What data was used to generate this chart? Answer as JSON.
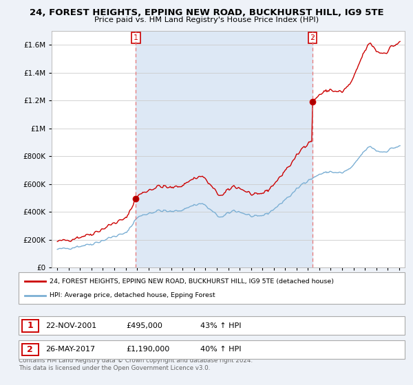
{
  "title": "24, FOREST HEIGHTS, EPPING NEW ROAD, BUCKHURST HILL, IG9 5TE",
  "subtitle": "Price paid vs. HM Land Registry's House Price Index (HPI)",
  "legend_line1": "24, FOREST HEIGHTS, EPPING NEW ROAD, BUCKHURST HILL, IG9 5TE (detached house)",
  "legend_line2": "HPI: Average price, detached house, Epping Forest",
  "sale1_date": "22-NOV-2001",
  "sale1_price": "£495,000",
  "sale1_hpi": "43% ↑ HPI",
  "sale1_year": 2001.89,
  "sale1_value": 495000,
  "sale2_date": "26-MAY-2017",
  "sale2_price": "£1,190,000",
  "sale2_hpi": "40% ↑ HPI",
  "sale2_year": 2017.4,
  "sale2_value": 1190000,
  "footer1": "Contains HM Land Registry data © Crown copyright and database right 2024.",
  "footer2": "This data is licensed under the Open Government Licence v3.0.",
  "red_color": "#cc0000",
  "blue_color": "#7bafd4",
  "vline_color": "#e87878",
  "ylim": [
    0,
    1700000
  ],
  "yticks": [
    0,
    200000,
    400000,
    600000,
    800000,
    1000000,
    1200000,
    1400000,
    1600000
  ],
  "xmin": 1994.5,
  "xmax": 2025.5,
  "background_color": "#eef2f8",
  "plot_bg": "#ffffff",
  "highlight_bg": "#dde8f5",
  "grid_color": "#cccccc"
}
